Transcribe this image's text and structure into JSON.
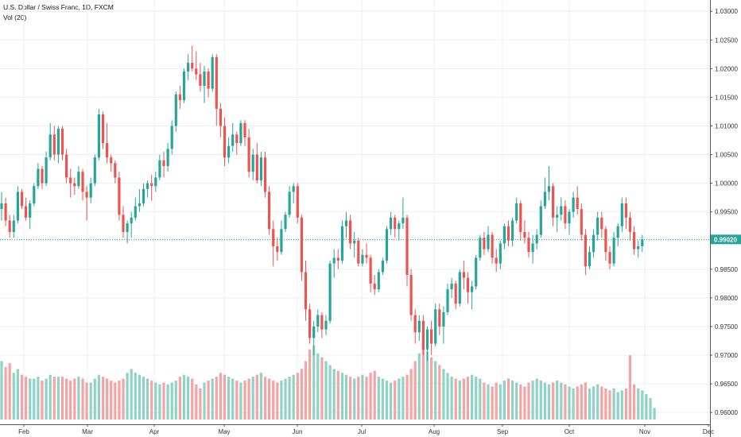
{
  "legend": {
    "symbol": "U.S. Dollar / Swiss Franc, 1D, FXCM",
    "indicator": "Vol (20)"
  },
  "colors": {
    "up": "#26a69a",
    "down": "#ef5350",
    "vol_up": "#8fd3c7",
    "vol_down": "#f5a3a3",
    "grid": "#eceff2",
    "price_line": "#26a69a",
    "price_tag": "#26a69a"
  },
  "chart_data": {
    "type": "candlestick",
    "title": "U.S. Dollar / Swiss Franc, 1D, FXCM",
    "indicator": "Vol (20)",
    "x_ticks": [
      "Feb",
      "Mar",
      "Apr",
      "May",
      "Jun",
      "Jul",
      "Aug",
      "Sep",
      "Oct",
      "Nov",
      "Dec"
    ],
    "y_ticks": [
      "1.03000",
      "1.02500",
      "1.02000",
      "1.01500",
      "1.01000",
      "1.00500",
      "1.00000",
      "0.99500",
      "0.99000",
      "0.98500",
      "0.98000",
      "0.97500",
      "0.97000",
      "0.96500",
      "0.96000"
    ],
    "ylim": [
      0.9585,
      1.031
    ],
    "last_price": "0.99020",
    "last_price_value": 0.9902,
    "grid": true,
    "candles": [
      [
        0.9955,
        0.9985,
        0.9935,
        0.9965
      ],
      [
        0.9965,
        0.9975,
        0.9925,
        0.9935
      ],
      [
        0.9935,
        0.9945,
        0.9905,
        0.9915
      ],
      [
        0.9915,
        0.9945,
        0.9905,
        0.9935
      ],
      [
        0.9935,
        0.9995,
        0.993,
        0.9985
      ],
      [
        0.9985,
        0.999,
        0.9955,
        0.996
      ],
      [
        0.996,
        0.9975,
        0.9935,
        0.994
      ],
      [
        0.994,
        0.997,
        0.992,
        0.9965
      ],
      [
        0.9965,
        1.0,
        0.996,
        0.9995
      ],
      [
        0.9995,
        1.0035,
        0.999,
        1.0025
      ],
      [
        1.0025,
        1.003,
        0.999,
        1.0
      ],
      [
        1.0,
        1.0055,
        0.9995,
        1.0045
      ],
      [
        1.0045,
        1.0105,
        1.004,
        1.0085
      ],
      [
        1.0085,
        1.01,
        1.004,
        1.005
      ],
      [
        1.005,
        1.01,
        1.0035,
        1.0095
      ],
      [
        1.0095,
        1.01,
        1.004,
        1.005
      ],
      [
        1.005,
        1.006,
        1.0,
        1.001
      ],
      [
        1.001,
        1.0025,
        0.9975,
        1.0
      ],
      [
        1.0,
        1.001,
        0.998,
        0.9995
      ],
      [
        0.9995,
        1.003,
        0.999,
        1.002
      ],
      [
        1.002,
        1.0025,
        0.997,
        0.9985
      ],
      [
        0.9985,
        0.9995,
        0.9935,
        0.9975
      ],
      [
        0.9975,
        1.001,
        0.9965,
        1.0
      ],
      [
        1.0,
        1.005,
        0.9995,
        1.0045
      ],
      [
        1.0045,
        1.013,
        1.004,
        1.012
      ],
      [
        1.012,
        1.0125,
        1.006,
        1.007
      ],
      [
        1.007,
        1.0105,
        1.0035,
        1.0045
      ],
      [
        1.0045,
        1.005,
        1.002,
        1.0035
      ],
      [
        1.0035,
        1.004,
        1.0,
        1.001
      ],
      [
        1.001,
        1.002,
        0.9935,
        0.9945
      ],
      [
        0.9945,
        0.996,
        0.9905,
        0.9915
      ],
      [
        0.9915,
        0.9935,
        0.9895,
        0.993
      ],
      [
        0.993,
        0.995,
        0.9905,
        0.994
      ],
      [
        0.994,
        0.9975,
        0.9935,
        0.996
      ],
      [
        0.996,
        0.999,
        0.995,
        0.9965
      ],
      [
        0.9965,
        1.0,
        0.996,
        0.999
      ],
      [
        0.999,
        1.0005,
        0.9975,
        1.0
      ],
      [
        1.0,
        1.0015,
        0.997,
        0.9995
      ],
      [
        0.9995,
        1.002,
        0.9985,
        1.001
      ],
      [
        1.001,
        1.005,
        1.0005,
        1.004
      ],
      [
        1.004,
        1.0055,
        1.001,
        1.003
      ],
      [
        1.003,
        1.007,
        1.002,
        1.006
      ],
      [
        1.006,
        1.011,
        1.005,
        1.01
      ],
      [
        1.01,
        1.016,
        1.009,
        1.0155
      ],
      [
        1.0155,
        1.017,
        1.013,
        1.0145
      ],
      [
        1.0145,
        1.02,
        1.014,
        1.0195
      ],
      [
        1.0195,
        1.0225,
        1.018,
        1.021
      ],
      [
        1.021,
        1.024,
        1.0195,
        1.02
      ],
      [
        1.02,
        1.023,
        1.018,
        1.019
      ],
      [
        1.019,
        1.021,
        1.016,
        1.017
      ],
      [
        1.017,
        1.0205,
        1.014,
        1.0195
      ],
      [
        1.0195,
        1.02,
        1.015,
        1.0165
      ],
      [
        1.0165,
        1.0225,
        1.016,
        1.022
      ],
      [
        1.022,
        1.0225,
        1.01,
        1.013
      ],
      [
        1.013,
        1.014,
        1.008,
        1.01
      ],
      [
        1.01,
        1.0115,
        1.003,
        1.0045
      ],
      [
        1.0045,
        1.008,
        1.0035,
        1.0065
      ],
      [
        1.0065,
        1.0105,
        1.0055,
        1.0085
      ],
      [
        1.0085,
        1.009,
        1.005,
        1.007
      ],
      [
        1.007,
        1.011,
        1.0065,
        1.0105
      ],
      [
        1.0105,
        1.011,
        1.0065,
        1.008
      ],
      [
        1.008,
        1.0095,
        1.001,
        1.002
      ],
      [
        1.002,
        1.006,
        1.0005,
        1.005
      ],
      [
        1.005,
        1.007,
        1.0,
        1.0005
      ],
      [
        1.0005,
        1.0055,
        0.9995,
        1.0045
      ],
      [
        1.0045,
        1.0055,
        0.9975,
        0.9985
      ],
      [
        0.9985,
        0.9995,
        0.991,
        0.992
      ],
      [
        0.992,
        0.9935,
        0.9855,
        0.989
      ],
      [
        0.989,
        0.9905,
        0.9865,
        0.988
      ],
      [
        0.988,
        0.9935,
        0.9875,
        0.992
      ],
      [
        0.992,
        0.995,
        0.9915,
        0.9945
      ],
      [
        0.9945,
        0.9995,
        0.994,
        0.9985
      ],
      [
        0.9985,
        1.0,
        0.9965,
        0.9995
      ],
      [
        0.9995,
        1.0,
        0.993,
        0.994
      ],
      [
        0.994,
        0.9945,
        0.983,
        0.9845
      ],
      [
        0.9845,
        0.9865,
        0.976,
        0.978
      ],
      [
        0.978,
        0.979,
        0.972,
        0.973
      ],
      [
        0.973,
        0.976,
        0.97,
        0.975
      ],
      [
        0.975,
        0.978,
        0.974,
        0.977
      ],
      [
        0.977,
        0.9775,
        0.973,
        0.9745
      ],
      [
        0.9745,
        0.977,
        0.9735,
        0.976
      ],
      [
        0.976,
        0.9865,
        0.9755,
        0.986
      ],
      [
        0.986,
        0.9885,
        0.9835,
        0.987
      ],
      [
        0.987,
        0.9885,
        0.985,
        0.9865
      ],
      [
        0.9865,
        0.9935,
        0.986,
        0.9925
      ],
      [
        0.9925,
        0.995,
        0.9905,
        0.9935
      ],
      [
        0.9935,
        0.9945,
        0.9885,
        0.9895
      ],
      [
        0.9895,
        0.9915,
        0.987,
        0.99
      ],
      [
        0.99,
        0.9905,
        0.9855,
        0.986
      ],
      [
        0.986,
        0.9885,
        0.9855,
        0.9875
      ],
      [
        0.9875,
        0.9895,
        0.986,
        0.987
      ],
      [
        0.987,
        0.9875,
        0.981,
        0.9825
      ],
      [
        0.9825,
        0.984,
        0.9805,
        0.9815
      ],
      [
        0.9815,
        0.985,
        0.981,
        0.9845
      ],
      [
        0.9845,
        0.987,
        0.984,
        0.9865
      ],
      [
        0.9865,
        0.9925,
        0.986,
        0.992
      ],
      [
        0.992,
        0.995,
        0.991,
        0.994
      ],
      [
        0.994,
        0.9945,
        0.9905,
        0.992
      ],
      [
        0.992,
        0.9935,
        0.99,
        0.993
      ],
      [
        0.993,
        0.9975,
        0.992,
        0.994
      ],
      [
        0.994,
        0.9945,
        0.982,
        0.984
      ],
      [
        0.984,
        0.985,
        0.976,
        0.977
      ],
      [
        0.977,
        0.978,
        0.972,
        0.974
      ],
      [
        0.974,
        0.977,
        0.9725,
        0.976
      ],
      [
        0.976,
        0.977,
        0.97,
        0.971
      ],
      [
        0.971,
        0.975,
        0.969,
        0.9745
      ],
      [
        0.9745,
        0.976,
        0.97,
        0.972
      ],
      [
        0.972,
        0.979,
        0.9715,
        0.978
      ],
      [
        0.978,
        0.979,
        0.9735,
        0.975
      ],
      [
        0.975,
        0.9785,
        0.972,
        0.9775
      ],
      [
        0.9775,
        0.9825,
        0.977,
        0.9815
      ],
      [
        0.9815,
        0.9835,
        0.98,
        0.9825
      ],
      [
        0.9825,
        0.983,
        0.978,
        0.979
      ],
      [
        0.979,
        0.985,
        0.9785,
        0.9845
      ],
      [
        0.9845,
        0.9865,
        0.9815,
        0.9835
      ],
      [
        0.9835,
        0.9845,
        0.979,
        0.981
      ],
      [
        0.981,
        0.983,
        0.978,
        0.982
      ],
      [
        0.982,
        0.9875,
        0.9815,
        0.987
      ],
      [
        0.987,
        0.991,
        0.9865,
        0.9905
      ],
      [
        0.9905,
        0.9915,
        0.9875,
        0.9885
      ],
      [
        0.9885,
        0.9925,
        0.988,
        0.991
      ],
      [
        0.991,
        0.9915,
        0.986,
        0.987
      ],
      [
        0.987,
        0.9885,
        0.9845,
        0.986
      ],
      [
        0.986,
        0.99,
        0.985,
        0.9895
      ],
      [
        0.9895,
        0.993,
        0.9885,
        0.9925
      ],
      [
        0.9925,
        0.9935,
        0.989,
        0.99
      ],
      [
        0.99,
        0.994,
        0.989,
        0.9935
      ],
      [
        0.9935,
        0.9975,
        0.993,
        0.9965
      ],
      [
        0.9965,
        0.997,
        0.99,
        0.9915
      ],
      [
        0.9915,
        0.9935,
        0.9895,
        0.9905
      ],
      [
        0.9905,
        0.9915,
        0.987,
        0.988
      ],
      [
        0.988,
        0.991,
        0.986,
        0.9895
      ],
      [
        0.9895,
        0.992,
        0.9885,
        0.991
      ],
      [
        0.991,
        0.997,
        0.9905,
        0.996
      ],
      [
        0.996,
        1.001,
        0.9955,
        0.9985
      ],
      [
        0.9985,
        1.003,
        0.997,
        0.9995
      ],
      [
        0.9995,
        1.0,
        0.9925,
        0.994
      ],
      [
        0.994,
        0.996,
        0.9915,
        0.9945
      ],
      [
        0.9945,
        0.9975,
        0.9935,
        0.996
      ],
      [
        0.996,
        0.997,
        0.992,
        0.993
      ],
      [
        0.993,
        0.9955,
        0.991,
        0.995
      ],
      [
        0.995,
        0.9985,
        0.994,
        0.9975
      ],
      [
        0.9975,
        0.9995,
        0.9945,
        0.9955
      ],
      [
        0.9955,
        0.9965,
        0.99,
        0.991
      ],
      [
        0.991,
        0.992,
        0.984,
        0.9855
      ],
      [
        0.9855,
        0.989,
        0.985,
        0.988
      ],
      [
        0.988,
        0.992,
        0.987,
        0.991
      ],
      [
        0.991,
        0.995,
        0.99,
        0.994
      ],
      [
        0.994,
        0.995,
        0.9905,
        0.992
      ],
      [
        0.992,
        0.9925,
        0.9865,
        0.988
      ],
      [
        0.988,
        0.989,
        0.985,
        0.986
      ],
      [
        0.986,
        0.9915,
        0.9855,
        0.9905
      ],
      [
        0.9905,
        0.993,
        0.989,
        0.9925
      ],
      [
        0.9925,
        0.9975,
        0.9915,
        0.9965
      ],
      [
        0.9965,
        0.9975,
        0.992,
        0.994
      ],
      [
        0.994,
        0.995,
        0.99,
        0.9915
      ],
      [
        0.9915,
        0.9925,
        0.9875,
        0.9885
      ],
      [
        0.9885,
        0.99,
        0.987,
        0.989
      ],
      [
        0.989,
        0.991,
        0.988,
        0.9902
      ]
    ],
    "volume": [
      30,
      27,
      29,
      24,
      26,
      23,
      22,
      21,
      21,
      22,
      20,
      21,
      23,
      22,
      22,
      22,
      21,
      20,
      21,
      22,
      21,
      19,
      19,
      21,
      23,
      22,
      21,
      20,
      19,
      20,
      21,
      24,
      26,
      24,
      23,
      22,
      21,
      20,
      19,
      18,
      19,
      18,
      19,
      20,
      22,
      23,
      22,
      21,
      18,
      16,
      19,
      20,
      21,
      22,
      24,
      23,
      22,
      21,
      20,
      19,
      20,
      21,
      22,
      23,
      24,
      22,
      21,
      20,
      19,
      20,
      21,
      22,
      23,
      24,
      26,
      30,
      36,
      38,
      34,
      32,
      30,
      28,
      26,
      25,
      24,
      23,
      22,
      21,
      22,
      23,
      22,
      24,
      25,
      22,
      21,
      20,
      19,
      20,
      21,
      22,
      23,
      26,
      30,
      34,
      38,
      35,
      32,
      30,
      28,
      26,
      24,
      22,
      21,
      20,
      21,
      22,
      23,
      22,
      21,
      19,
      18,
      17,
      19,
      18,
      20,
      21,
      20,
      19,
      18,
      17,
      19,
      20,
      21,
      20,
      19,
      18,
      19,
      20,
      19,
      18,
      17,
      16,
      17,
      18,
      19,
      16,
      17,
      18,
      17,
      16,
      15,
      16,
      14,
      15,
      16,
      33,
      18,
      16,
      15,
      13,
      11,
      6
    ]
  }
}
